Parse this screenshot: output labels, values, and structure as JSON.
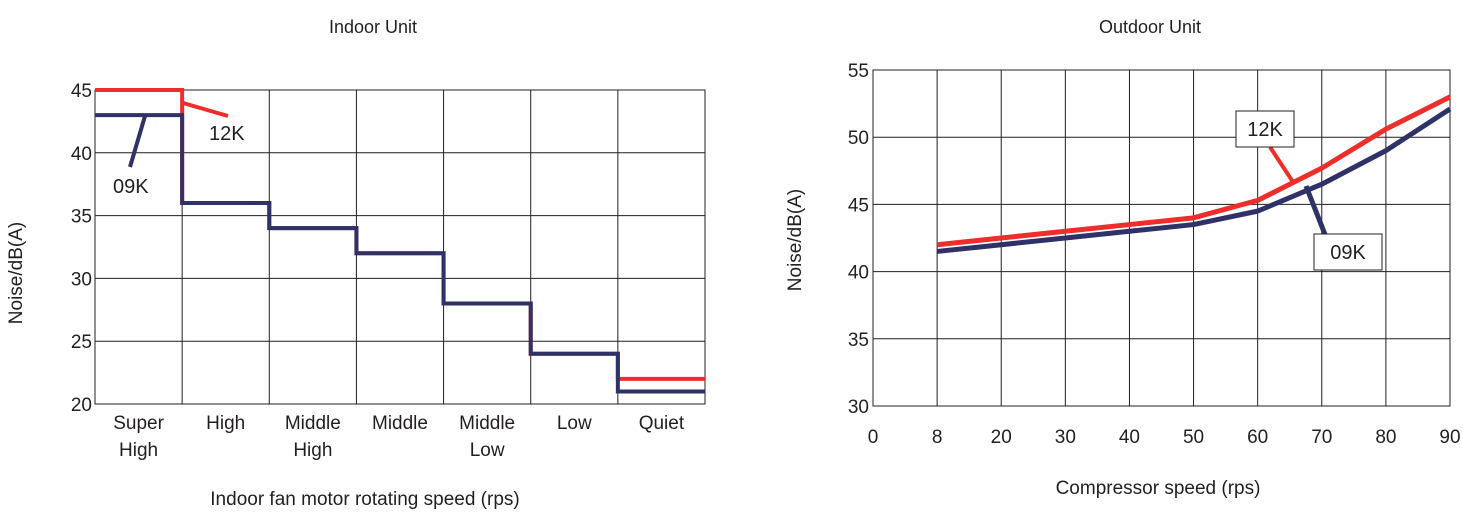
{
  "chart_data": [
    {
      "type": "line",
      "title": "Indoor Unit",
      "xlabel": "Indoor fan motor rotating speed (rps)",
      "ylabel": "Noise/dB(A)",
      "categories": [
        [
          "Super",
          "High"
        ],
        [
          "High"
        ],
        [
          "Middle",
          "High"
        ],
        [
          "Middle"
        ],
        [
          "Middle",
          "Low"
        ],
        [
          "Low"
        ],
        [
          "Quiet"
        ]
      ],
      "ylim": [
        20,
        45
      ],
      "yticks": [
        20,
        25,
        30,
        35,
        40,
        45
      ],
      "grid": true,
      "series": [
        {
          "name": "12K",
          "values": [
            45,
            36,
            34,
            32,
            28,
            24,
            22
          ],
          "color": "#ed2e2b"
        },
        {
          "name": "09K",
          "values": [
            43,
            36,
            34,
            32,
            28,
            24,
            21
          ],
          "color": "#2f3266"
        }
      ]
    },
    {
      "type": "line",
      "title": "Outdoor Unit",
      "xlabel": "Compressor speed (rps)",
      "ylabel": "Noise/dB(A)",
      "xticks": [
        "0",
        "8",
        "20",
        "30",
        "40",
        "50",
        "60",
        "70",
        "80",
        "90"
      ],
      "ylim": [
        30,
        55
      ],
      "yticks": [
        30,
        35,
        40,
        45,
        50,
        55
      ],
      "grid": true,
      "series": [
        {
          "name": "12K",
          "x": [
            8,
            20,
            30,
            40,
            50,
            60,
            70,
            80,
            90
          ],
          "values": [
            42.0,
            42.5,
            43.0,
            43.5,
            44.0,
            45.3,
            47.7,
            50.6,
            53.0
          ],
          "color": "#ed2e2b"
        },
        {
          "name": "09K",
          "x": [
            8,
            20,
            30,
            40,
            50,
            60,
            70,
            80,
            90
          ],
          "values": [
            41.5,
            42.0,
            42.5,
            43.0,
            43.5,
            44.5,
            46.5,
            49.0,
            52.1
          ],
          "color": "#2f3266"
        }
      ]
    }
  ]
}
